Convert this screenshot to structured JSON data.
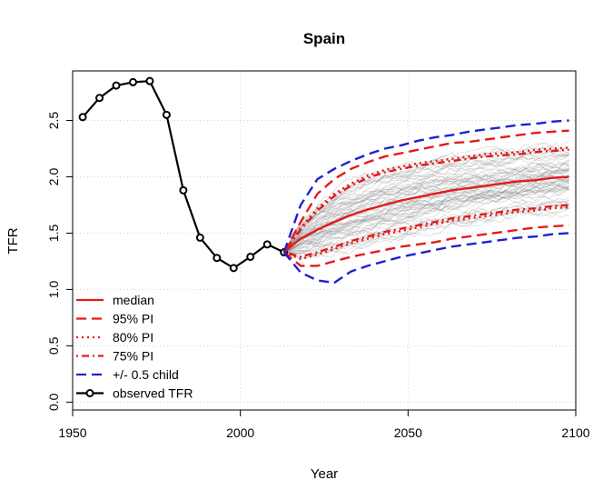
{
  "chart_data": {
    "type": "line",
    "title": "Spain",
    "xlabel": "Year",
    "ylabel": "TFR",
    "xlim": [
      1950,
      2100
    ],
    "ylim": [
      -0.07,
      2.94
    ],
    "xticks": [
      1950,
      2000,
      2050,
      2100
    ],
    "yticks": [
      0.0,
      0.5,
      1.0,
      1.5,
      2.0,
      2.5
    ],
    "xtick_labels": [
      "1950",
      "2000",
      "2050",
      "2100"
    ],
    "ytick_labels": [
      "0.0",
      "0.5",
      "1.0",
      "1.5",
      "2.0",
      "2.5"
    ],
    "grid": true,
    "legend_position": "bottom-left",
    "trajectory_color": "#888888",
    "series": [
      {
        "name": "observed TFR",
        "color": "#000000",
        "style": "solid-with-circles",
        "x": [
          1953,
          1958,
          1963,
          1968,
          1973,
          1978,
          1983,
          1988,
          1993,
          1998,
          2003,
          2008,
          2013
        ],
        "y": [
          2.53,
          2.7,
          2.81,
          2.84,
          2.85,
          2.55,
          1.88,
          1.46,
          1.28,
          1.19,
          1.29,
          1.4,
          1.33
        ]
      },
      {
        "name": "median",
        "color": "#e41a1c",
        "style": "solid",
        "x": [
          2013,
          2018,
          2023,
          2028,
          2033,
          2038,
          2043,
          2048,
          2053,
          2058,
          2063,
          2068,
          2073,
          2078,
          2083,
          2088,
          2093,
          2098
        ],
        "y": [
          1.33,
          1.45,
          1.53,
          1.6,
          1.66,
          1.71,
          1.75,
          1.79,
          1.82,
          1.85,
          1.88,
          1.9,
          1.92,
          1.94,
          1.96,
          1.97,
          1.99,
          2.0
        ]
      },
      {
        "name": "95% PI",
        "color": "#e41a1c",
        "style": "dashed",
        "upper": [
          1.33,
          1.6,
          1.85,
          1.98,
          2.07,
          2.13,
          2.18,
          2.21,
          2.24,
          2.27,
          2.3,
          2.31,
          2.33,
          2.35,
          2.37,
          2.39,
          2.4,
          2.41
        ],
        "lower": [
          1.33,
          1.21,
          1.21,
          1.25,
          1.29,
          1.32,
          1.35,
          1.38,
          1.4,
          1.42,
          1.45,
          1.47,
          1.49,
          1.51,
          1.53,
          1.55,
          1.56,
          1.57
        ]
      },
      {
        "name": "80% PI",
        "color": "#e41a1c",
        "style": "dotted",
        "upper": [
          1.33,
          1.55,
          1.72,
          1.85,
          1.94,
          2.01,
          2.06,
          2.09,
          2.12,
          2.14,
          2.16,
          2.18,
          2.2,
          2.21,
          2.22,
          2.24,
          2.25,
          2.26
        ],
        "lower": [
          1.33,
          1.27,
          1.31,
          1.36,
          1.41,
          1.45,
          1.49,
          1.52,
          1.55,
          1.58,
          1.61,
          1.63,
          1.65,
          1.67,
          1.69,
          1.7,
          1.72,
          1.73
        ]
      },
      {
        "name": "75% PI",
        "color": "#e41a1c",
        "style": "dotdash",
        "upper": [
          1.33,
          1.53,
          1.7,
          1.83,
          1.92,
          1.99,
          2.04,
          2.07,
          2.1,
          2.12,
          2.14,
          2.16,
          2.18,
          2.19,
          2.2,
          2.22,
          2.23,
          2.24
        ],
        "lower": [
          1.33,
          1.29,
          1.33,
          1.38,
          1.43,
          1.47,
          1.51,
          1.54,
          1.57,
          1.6,
          1.63,
          1.65,
          1.67,
          1.69,
          1.71,
          1.72,
          1.74,
          1.75
        ]
      },
      {
        "name": "+/- 0.5 child",
        "color": "#1f1fd6",
        "style": "dashed",
        "upper": [
          1.33,
          1.75,
          1.98,
          2.07,
          2.14,
          2.2,
          2.25,
          2.28,
          2.32,
          2.35,
          2.37,
          2.4,
          2.42,
          2.44,
          2.46,
          2.47,
          2.49,
          2.5
        ],
        "lower": [
          1.33,
          1.15,
          1.08,
          1.06,
          1.16,
          1.21,
          1.25,
          1.29,
          1.32,
          1.35,
          1.38,
          1.4,
          1.42,
          1.44,
          1.46,
          1.47,
          1.49,
          1.5
        ]
      }
    ]
  }
}
